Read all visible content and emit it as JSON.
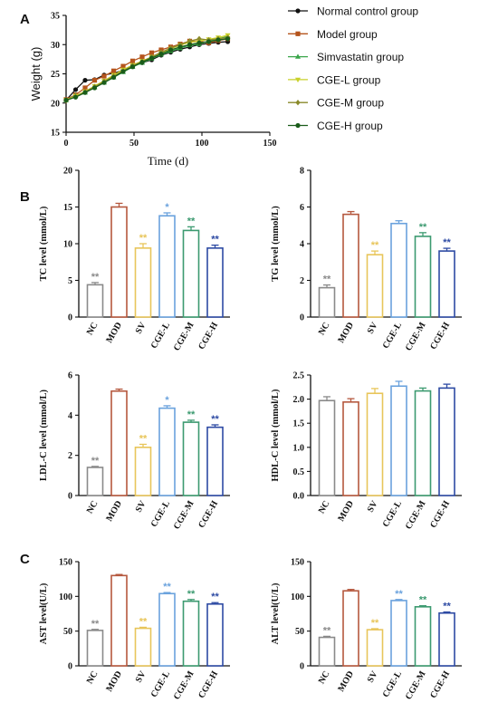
{
  "panel_letters": [
    "A",
    "B",
    "C"
  ],
  "colors": {
    "NC": "#8a8a8a",
    "MOD": "#b5583e",
    "SV": "#e8c55a",
    "CGE-L": "#6aa2dd",
    "CGE-M": "#3c9a70",
    "CGE-H": "#2d4aa3",
    "line_normal": "#111111",
    "line_model": "#b5541c",
    "line_simv": "#3aa64a",
    "line_cgel": "#c9d12a",
    "line_cgem": "#8a8a2a",
    "line_cgeh": "#1a5c1a"
  },
  "chart_data": [
    {
      "type": "line",
      "panel": "A",
      "xlabel": "Time (d)",
      "ylabel": "Weight (g)",
      "xlim": [
        0,
        150
      ],
      "ylim": [
        15,
        35
      ],
      "xticks": [
        "0",
        "50",
        "100",
        "150"
      ],
      "yticks": [
        "15",
        "20",
        "25",
        "30",
        "35"
      ],
      "series": [
        {
          "name": "Normal control group",
          "marker": "circle",
          "color_key": "line_normal",
          "x": [
            0,
            7,
            14,
            21,
            28,
            35,
            42,
            49,
            56,
            63,
            70,
            77,
            84,
            91,
            98,
            105,
            112,
            119
          ],
          "y": [
            20.5,
            22.3,
            23.9,
            24.0,
            24.8,
            25.1,
            25.6,
            26.4,
            26.9,
            27.4,
            28.2,
            28.7,
            29.2,
            29.6,
            30.0,
            30.2,
            30.4,
            30.5
          ]
        },
        {
          "name": "Model group",
          "marker": "square",
          "color_key": "line_model",
          "x": [
            0,
            7,
            14,
            21,
            28,
            35,
            42,
            49,
            56,
            63,
            70,
            77,
            84,
            91,
            98,
            105,
            112,
            119
          ],
          "y": [
            20.6,
            21.4,
            22.6,
            23.9,
            24.6,
            25.5,
            26.3,
            27.2,
            27.9,
            28.6,
            29.1,
            29.6,
            30.1,
            30.6,
            30.6,
            30.3,
            30.7,
            31.0
          ]
        },
        {
          "name": "Simvastatin group",
          "marker": "triangle-up",
          "color_key": "line_simv",
          "x": [
            0,
            7,
            14,
            21,
            28,
            35,
            42,
            49,
            56,
            63,
            70,
            77,
            84,
            91,
            98,
            105,
            112,
            119
          ],
          "y": [
            20.5,
            21.3,
            21.8,
            22.7,
            23.5,
            24.4,
            25.3,
            26.2,
            26.9,
            27.6,
            28.3,
            28.9,
            29.4,
            29.9,
            30.1,
            30.6,
            31.0,
            31.4
          ]
        },
        {
          "name": "CGE-L group",
          "marker": "triangle-down",
          "color_key": "line_cgel",
          "x": [
            0,
            7,
            14,
            21,
            28,
            35,
            42,
            49,
            56,
            63,
            70,
            77,
            84,
            91,
            98,
            105,
            112,
            119
          ],
          "y": [
            20.5,
            21.2,
            22.0,
            22.9,
            23.8,
            24.8,
            25.7,
            26.5,
            27.2,
            27.9,
            28.6,
            29.3,
            29.9,
            30.4,
            30.6,
            30.9,
            31.2,
            31.6
          ]
        },
        {
          "name": "CGE-M group",
          "marker": "diamond",
          "color_key": "line_cgem",
          "x": [
            0,
            7,
            14,
            21,
            28,
            35,
            42,
            49,
            56,
            63,
            70,
            77,
            84,
            91,
            98,
            105,
            112,
            119
          ],
          "y": [
            20.4,
            21.1,
            21.9,
            22.8,
            23.7,
            24.6,
            25.5,
            26.4,
            27.1,
            27.9,
            28.7,
            29.4,
            30.0,
            30.6,
            31.0,
            30.8,
            31.0,
            31.2
          ]
        },
        {
          "name": "CGE-H group",
          "marker": "circle",
          "color_key": "line_cgeh",
          "x": [
            0,
            7,
            14,
            21,
            28,
            35,
            42,
            49,
            56,
            63,
            70,
            77,
            84,
            91,
            98,
            105,
            112,
            119
          ],
          "y": [
            20.5,
            21.0,
            21.8,
            22.6,
            23.5,
            24.4,
            25.4,
            26.2,
            27.0,
            27.7,
            28.4,
            29.1,
            29.6,
            30.0,
            30.3,
            30.5,
            30.8,
            31.0
          ]
        }
      ]
    },
    {
      "type": "bar",
      "panel": "B",
      "ylabel": "TC level (mmol/L)",
      "ylim": [
        0,
        20
      ],
      "yticks": [
        "0",
        "5",
        "10",
        "15",
        "20"
      ],
      "categories": [
        "NC",
        "MOD",
        "SV",
        "CGE-L",
        "CGE-M",
        "CGE-H"
      ],
      "values": [
        4.4,
        15.0,
        9.4,
        13.8,
        11.8,
        9.4
      ],
      "errors": [
        0.3,
        0.5,
        0.6,
        0.4,
        0.5,
        0.4
      ],
      "significance": [
        "**",
        "",
        "**",
        "*",
        "**",
        "**"
      ]
    },
    {
      "type": "bar",
      "panel": "B",
      "ylabel": "TG level (mmol/L)",
      "ylim": [
        0,
        8
      ],
      "yticks": [
        "0",
        "2",
        "4",
        "6",
        "8"
      ],
      "categories": [
        "NC",
        "MOD",
        "SV",
        "CGE-L",
        "CGE-M",
        "CGE-H"
      ],
      "values": [
        1.6,
        5.6,
        3.4,
        5.1,
        4.4,
        3.6
      ],
      "errors": [
        0.15,
        0.15,
        0.2,
        0.15,
        0.2,
        0.15
      ],
      "significance": [
        "**",
        "",
        "**",
        "",
        "**",
        "**"
      ]
    },
    {
      "type": "bar",
      "panel": "B",
      "ylabel": "LDL-C level (mmol/L)",
      "ylim": [
        0,
        6
      ],
      "yticks": [
        "0",
        "2",
        "4",
        "6"
      ],
      "categories": [
        "NC",
        "MOD",
        "SV",
        "CGE-L",
        "CGE-M",
        "CGE-H"
      ],
      "values": [
        1.4,
        5.2,
        2.4,
        4.35,
        3.65,
        3.4
      ],
      "errors": [
        0.05,
        0.1,
        0.15,
        0.12,
        0.1,
        0.12
      ],
      "significance": [
        "**",
        "",
        "**",
        "*",
        "**",
        "**"
      ]
    },
    {
      "type": "bar",
      "panel": "B",
      "ylabel": "HDL-C level (mmol/L)",
      "ylim": [
        0,
        2.5
      ],
      "yticks": [
        "0.0",
        "0.5",
        "1.0",
        "1.5",
        "2.0",
        "2.5"
      ],
      "categories": [
        "NC",
        "MOD",
        "SV",
        "CGE-L",
        "CGE-M",
        "CGE-H"
      ],
      "values": [
        1.97,
        1.94,
        2.12,
        2.27,
        2.17,
        2.23
      ],
      "errors": [
        0.08,
        0.07,
        0.1,
        0.1,
        0.06,
        0.08
      ],
      "significance": [
        "",
        "",
        "",
        "",
        "",
        ""
      ]
    },
    {
      "type": "bar",
      "panel": "C",
      "ylabel": "AST level(U/L)",
      "ylim": [
        0,
        150
      ],
      "yticks": [
        "0",
        "50",
        "100",
        "150"
      ],
      "categories": [
        "NC",
        "MOD",
        "SV",
        "CGE-L",
        "CGE-M",
        "CGE-H"
      ],
      "values": [
        51,
        130,
        54,
        104,
        93,
        89
      ],
      "errors": [
        1.5,
        1.5,
        1.5,
        1.5,
        2.5,
        2
      ],
      "significance": [
        "**",
        "",
        "**",
        "**",
        "**",
        "**"
      ]
    },
    {
      "type": "bar",
      "panel": "C",
      "ylabel": "ALT level(U/L)",
      "ylim": [
        0,
        150
      ],
      "yticks": [
        "0",
        "50",
        "100",
        "150"
      ],
      "categories": [
        "NC",
        "MOD",
        "SV",
        "CGE-L",
        "CGE-M",
        "CGE-H"
      ],
      "values": [
        41,
        108,
        52,
        94,
        85,
        76
      ],
      "errors": [
        1.5,
        2,
        1.5,
        1.5,
        1.5,
        1.5
      ],
      "significance": [
        "**",
        "",
        "**",
        "**",
        "**",
        "**"
      ]
    }
  ]
}
